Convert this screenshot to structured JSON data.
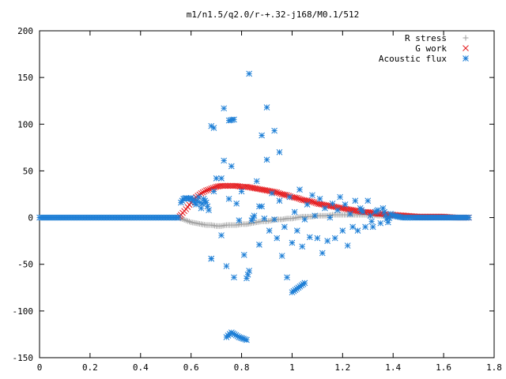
{
  "chart_data": {
    "type": "scatter",
    "title": "m1/n1.5/q2.0/r-+.32-j168/M0.1/512",
    "xlabel": "",
    "ylabel": "",
    "xlim": [
      0,
      1.8
    ],
    "ylim": [
      -150,
      200
    ],
    "x_ticks": [
      "0",
      "0.2",
      "0.4",
      "0.6",
      "0.8",
      "1",
      "1.2",
      "1.4",
      "1.6",
      "1.8"
    ],
    "y_ticks": [
      "200",
      "150",
      "100",
      "50",
      "0",
      "-50",
      "-100",
      "-150"
    ],
    "grid": false,
    "legend_position": "top-right",
    "series": [
      {
        "name": "R stress",
        "marker": "+",
        "color": "#a0a0a0",
        "x": [
          0,
          0.05,
          0.1,
          0.15,
          0.2,
          0.25,
          0.3,
          0.35,
          0.4,
          0.45,
          0.5,
          0.55,
          0.56,
          0.58,
          0.6,
          0.62,
          0.64,
          0.66,
          0.68,
          0.7,
          0.72,
          0.74,
          0.76,
          0.78,
          0.8,
          0.82,
          0.84,
          0.86,
          0.88,
          0.9,
          0.92,
          0.94,
          0.96,
          0.98,
          1.0,
          1.02,
          1.04,
          1.06,
          1.08,
          1.1,
          1.12,
          1.14,
          1.16,
          1.18,
          1.2,
          1.22,
          1.24,
          1.26,
          1.28,
          1.3,
          1.32,
          1.34,
          1.36,
          1.38,
          1.4,
          1.45,
          1.5,
          1.55,
          1.6,
          1.65,
          1.7
        ],
        "y": [
          0,
          0,
          0,
          0,
          0,
          0,
          0,
          0,
          0,
          0,
          0,
          0,
          -1,
          -3,
          -5,
          -6,
          -7,
          -8,
          -8,
          -9,
          -9,
          -8,
          -8,
          -8,
          -7,
          -7,
          -6,
          -5,
          -4,
          -4,
          -3,
          -2,
          -2,
          -1,
          -1,
          0,
          1,
          1,
          1,
          2,
          2,
          2,
          3,
          3,
          3,
          3,
          3,
          3,
          3,
          3,
          3,
          2,
          2,
          2,
          2,
          2,
          1,
          1,
          1,
          0,
          0
        ]
      },
      {
        "name": "G work",
        "marker": "x",
        "color": "#e4191c",
        "x": [
          0.55,
          0.56,
          0.58,
          0.6,
          0.62,
          0.64,
          0.66,
          0.68,
          0.7,
          0.72,
          0.74,
          0.76,
          0.78,
          0.8,
          0.82,
          0.84,
          0.86,
          0.88,
          0.9,
          0.92,
          0.94,
          0.96,
          0.98,
          1.0,
          1.02,
          1.04,
          1.06,
          1.08,
          1.1,
          1.12,
          1.14,
          1.16,
          1.18,
          1.2,
          1.22,
          1.24,
          1.26,
          1.28,
          1.3,
          1.32,
          1.34,
          1.36,
          1.38,
          1.4,
          1.45,
          1.5,
          1.55,
          1.6,
          1.65,
          1.7
        ],
        "y": [
          0,
          3,
          9,
          16,
          22,
          26,
          29,
          31,
          33,
          34,
          34,
          34,
          34,
          33,
          33,
          32,
          31,
          30,
          29,
          28,
          27,
          25,
          24,
          22,
          21,
          19,
          18,
          17,
          15,
          14,
          13,
          12,
          11,
          10,
          9,
          8,
          7,
          6,
          6,
          5,
          4,
          4,
          3,
          3,
          2,
          1,
          1,
          1,
          0,
          0
        ]
      },
      {
        "name": "Acoustic flux",
        "marker": "*",
        "color": "#1e7fd6",
        "x": [
          0,
          0.05,
          0.1,
          0.15,
          0.2,
          0.25,
          0.3,
          0.35,
          0.4,
          0.45,
          0.5,
          0.55,
          0.56,
          0.57,
          0.58,
          0.59,
          0.6,
          0.61,
          0.62,
          0.63,
          0.64,
          0.65,
          0.66,
          0.67,
          0.68,
          0.69,
          0.7,
          0.72,
          0.73,
          0.74,
          0.75,
          0.76,
          0.77,
          0.78,
          0.79,
          0.8,
          0.81,
          0.82,
          0.83,
          0.84,
          0.85,
          0.86,
          0.87,
          0.88,
          0.89,
          0.9,
          0.91,
          0.92,
          0.93,
          0.94,
          0.95,
          0.96,
          0.97,
          0.98,
          0.99,
          1.0,
          1.01,
          1.02,
          1.03,
          1.04,
          1.05,
          1.06,
          1.07,
          1.08,
          1.09,
          1.1,
          1.11,
          1.12,
          1.13,
          1.14,
          1.15,
          1.16,
          1.17,
          1.18,
          1.19,
          1.2,
          1.21,
          1.22,
          1.23,
          1.24,
          1.25,
          1.26,
          1.27,
          1.28,
          1.29,
          1.3,
          1.31,
          1.32,
          1.33,
          1.34,
          1.35,
          1.36,
          1.37,
          1.38,
          1.39,
          1.4,
          1.42,
          1.44,
          1.46,
          1.48,
          1.5,
          1.55,
          1.6,
          1.65,
          1.7,
          0.68,
          0.73,
          0.75,
          0.77,
          0.88,
          0.9,
          0.93,
          0.83,
          0.74,
          0.76,
          0.79,
          0.82,
          0.68,
          0.72,
          0.69,
          0.87,
          0.95,
          1.0,
          1.05
        ],
        "y": [
          0,
          0,
          0,
          0,
          0,
          0,
          0,
          0,
          0,
          0,
          0,
          0,
          16,
          20,
          21,
          20,
          21,
          18,
          14,
          22,
          10,
          20,
          16,
          8,
          -44,
          28,
          42,
          -19,
          61,
          -52,
          20,
          55,
          -64,
          15,
          -3,
          28,
          -40,
          -65,
          -57,
          -3,
          2,
          39,
          -29,
          12,
          -1,
          62,
          -14,
          26,
          -2,
          -22,
          18,
          -41,
          -10,
          -64,
          22,
          -27,
          6,
          -14,
          30,
          -31,
          -2,
          14,
          -21,
          24,
          2,
          -22,
          20,
          -38,
          10,
          -25,
          0,
          15,
          -22,
          8,
          22,
          -14,
          14,
          -30,
          4,
          -10,
          18,
          -14,
          10,
          6,
          -10,
          18,
          2,
          -10,
          6,
          8,
          -6,
          10,
          2,
          -5,
          4,
          2,
          1,
          0,
          0,
          0,
          0,
          0,
          0,
          0,
          0,
          98,
          117,
          104,
          105,
          88,
          118,
          93,
          154,
          -128,
          -123,
          -128,
          -131,
          -44,
          42,
          96,
          12,
          70,
          -80,
          -70
        ]
      }
    ]
  }
}
